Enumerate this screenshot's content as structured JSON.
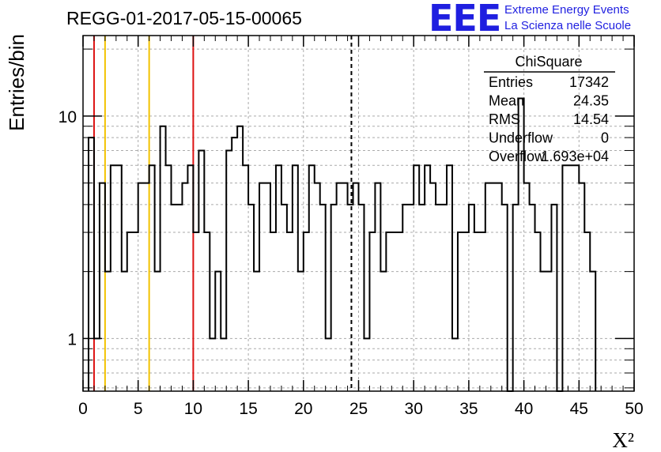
{
  "header": {
    "title": "REGG-01-2017-05-15-00065",
    "logo_text": "EEE",
    "logo_line1": "Extreme Energy Events",
    "logo_line2": "La Scienza nelle Scuole"
  },
  "colors": {
    "histogram": "#000000",
    "red_lines": "#dd1111",
    "yellow_lines": "#f2c200",
    "logo": "#1f1fe0",
    "grid": "#aaaaaa"
  },
  "chart_data": {
    "type": "histogram",
    "xlabel": "X²",
    "ylabel": "Entries/bin",
    "xlim": [
      0,
      50
    ],
    "ylim": [
      0.58,
      23
    ],
    "yscale": "log",
    "grid": true,
    "bin_width": 0.5,
    "x_ticks": [
      "0",
      "5",
      "10",
      "15",
      "20",
      "25",
      "30",
      "35",
      "40",
      "45",
      "50"
    ],
    "y_ticks": [
      "1",
      "10"
    ],
    "bin_start": 0.5,
    "values": [
      8,
      1,
      5,
      2,
      6,
      6,
      2,
      3,
      3,
      5,
      5,
      6,
      2,
      9,
      6,
      4,
      4,
      5,
      6,
      3,
      7,
      3,
      1,
      2,
      1,
      7,
      8,
      9,
      6,
      4,
      2,
      5,
      5,
      3,
      6,
      4,
      3,
      6,
      2,
      3,
      6,
      5,
      4,
      1,
      4,
      5,
      5,
      4,
      5,
      4,
      1,
      3,
      5,
      2,
      3,
      3,
      3,
      4,
      4,
      6,
      4,
      6,
      5,
      4,
      4,
      6,
      1,
      3,
      3,
      4,
      3,
      3,
      5,
      5,
      5,
      4,
      0,
      4,
      12,
      5,
      4,
      3,
      2,
      2,
      4,
      0,
      6,
      6,
      6,
      5,
      3,
      2
    ],
    "markers": {
      "red": [
        1,
        10
      ],
      "yellow": [
        2,
        6
      ],
      "mean_dashed": 24.35
    },
    "stats_box": {
      "title": "ChiSquare",
      "rows": [
        {
          "label": "Entries",
          "value": "17342"
        },
        {
          "label": "Mean",
          "value": "24.35"
        },
        {
          "label": "RMS",
          "value": "14.54"
        },
        {
          "label": "Underflow",
          "value": "0"
        },
        {
          "label": "Overflow",
          "value": "1.693e+04"
        }
      ]
    }
  }
}
